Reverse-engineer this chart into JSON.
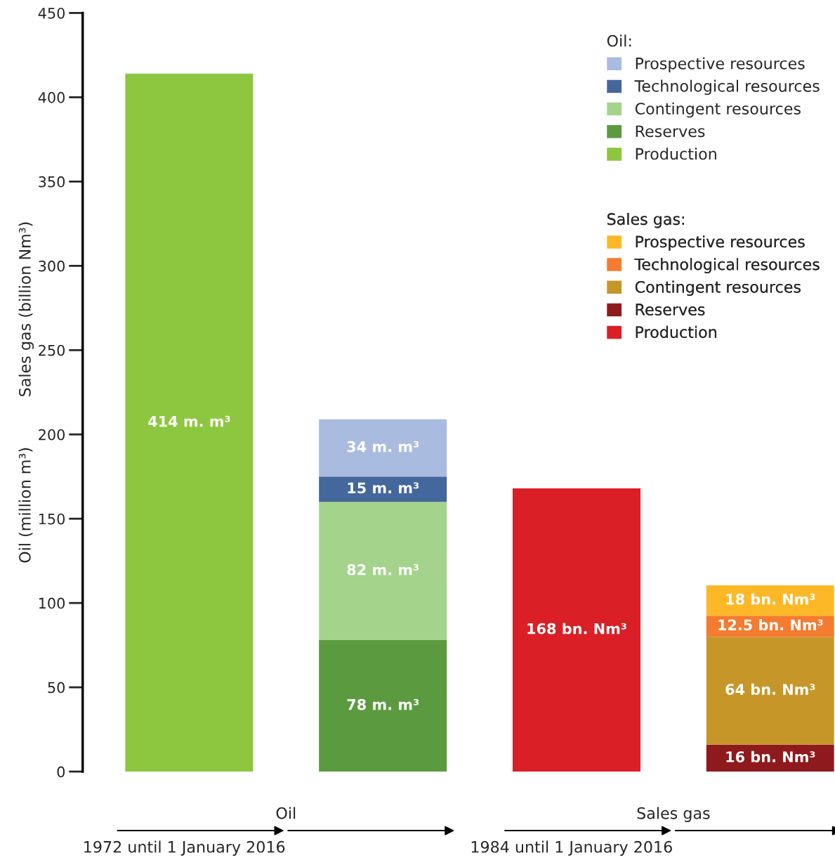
{
  "chart_data": {
    "type": "bar",
    "stacked": true,
    "categories": [
      null,
      null,
      null,
      null
    ],
    "ylabel": "Oil (million m³)          Sales gas (billion Nm³)",
    "ylim": [
      0,
      450
    ],
    "yticks": [
      0,
      50,
      100,
      150,
      200,
      250,
      300,
      350,
      400,
      450
    ],
    "grid": false,
    "legend": "top right",
    "legend_title": [
      "Oil:",
      "Sales gas:"
    ],
    "series": [
      {
        "name": "Production",
        "color": "#8dc63f",
        "values": [
          414,
          null,
          null,
          null
        ],
        "value_labels": [
          "414 m. m³",
          null,
          null,
          null
        ]
      },
      {
        "name": "Reserves",
        "color": "#5c9a3f",
        "values": [
          null,
          78,
          null,
          null
        ],
        "value_labels": [
          null,
          "78 m. m³",
          null,
          null
        ]
      },
      {
        "name": "Contingent resources",
        "color": "#a4d38b",
        "values": [
          null,
          82,
          null,
          null
        ],
        "value_labels": [
          null,
          "82 m. m³",
          null,
          null
        ]
      },
      {
        "name": "Technological resources",
        "color": "#44679c",
        "values": [
          null,
          15,
          null,
          null
        ],
        "value_labels": [
          null,
          "15 m. m³",
          null,
          null
        ]
      },
      {
        "name": "Prospective resources",
        "color": "#a9bbdf",
        "values": [
          null,
          34,
          null,
          null
        ],
        "value_labels": [
          null,
          "34 m. m³",
          null,
          null
        ]
      },
      {
        "name": "Production",
        "color": "#da1f26",
        "values": [
          null,
          null,
          168,
          null
        ],
        "value_labels": [
          null,
          null,
          "168 bn. Nm³",
          null
        ]
      },
      {
        "name": "Reserves",
        "color": "#8f1a1d",
        "values": [
          null,
          null,
          null,
          16
        ],
        "value_labels": [
          null,
          null,
          null,
          "16 bn. Nm³"
        ]
      },
      {
        "name": "Contingent resources",
        "color": "#c69629",
        "values": [
          null,
          null,
          null,
          64
        ],
        "value_labels": [
          null,
          null,
          null,
          "64 bn. Nm³"
        ]
      },
      {
        "name": "Technological resources",
        "color": "#f47b2f",
        "values": [
          null,
          null,
          null,
          12.5
        ],
        "value_labels": [
          null,
          null,
          null,
          "12.5 bn. Nm³"
        ]
      },
      {
        "name": "Prospective resources",
        "color": "#fdb827",
        "values": [
          null,
          null,
          null,
          18
        ],
        "value_labels": [
          null,
          null,
          null,
          "18 bn. Nm³"
        ]
      }
    ],
    "annotations": [
      "Oil",
      "Sales gas",
      "1972 until 1 January 2016",
      "1984 until 1 January 2016"
    ]
  }
}
